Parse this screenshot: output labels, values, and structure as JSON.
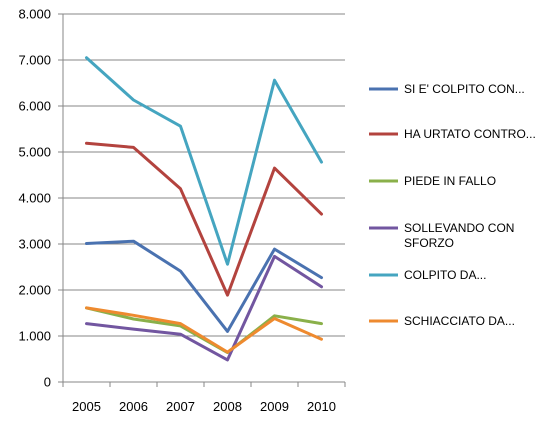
{
  "chart_data": {
    "type": "line",
    "title": "",
    "xlabel": "",
    "ylabel": "",
    "categories": [
      "2005",
      "2006",
      "2007",
      "2008",
      "2009",
      "2010"
    ],
    "ylim": [
      0,
      8000
    ],
    "ytick_values": [
      0,
      1000,
      2000,
      3000,
      4000,
      5000,
      6000,
      7000,
      8000
    ],
    "ytick_labels": [
      "0",
      "1.000",
      "2.000",
      "3.000",
      "4.000",
      "5.000",
      "6.000",
      "7.000",
      "8.000"
    ],
    "grid": "horizontal",
    "legend_position": "right",
    "series": [
      {
        "name": "SI E' COLPITO CON...",
        "name_lines": [
          "SI E' COLPITO CON..."
        ],
        "color": "#4a72b0",
        "values": [
          3010,
          3060,
          2410,
          1100,
          2890,
          2270
        ]
      },
      {
        "name": "HA URTATO CONTRO...",
        "name_lines": [
          "HA URTATO CONTRO..."
        ],
        "color": "#b3433e",
        "values": [
          5190,
          5100,
          4200,
          1890,
          4650,
          3650
        ]
      },
      {
        "name": "PIEDE IN FALLO",
        "name_lines": [
          "PIEDE IN FALLO"
        ],
        "color": "#8ab04a",
        "values": [
          1610,
          1370,
          1220,
          640,
          1440,
          1270
        ]
      },
      {
        "name": "SOLLEVANDO CON SFORZO",
        "name_lines": [
          "SOLLEVANDO CON",
          "SFORZO"
        ],
        "color": "#7256a0",
        "values": [
          1270,
          1150,
          1040,
          480,
          2730,
          2070
        ]
      },
      {
        "name": "COLPITO DA...",
        "name_lines": [
          "COLPITO DA..."
        ],
        "color": "#45a5c0",
        "values": [
          7050,
          6130,
          5560,
          2560,
          6560,
          4780
        ]
      },
      {
        "name": "SCHIACCIATO DA...",
        "name_lines": [
          "SCHIACCIATO DA..."
        ],
        "color": "#ee8a2f",
        "values": [
          1610,
          1450,
          1270,
          650,
          1380,
          930
        ]
      }
    ]
  }
}
